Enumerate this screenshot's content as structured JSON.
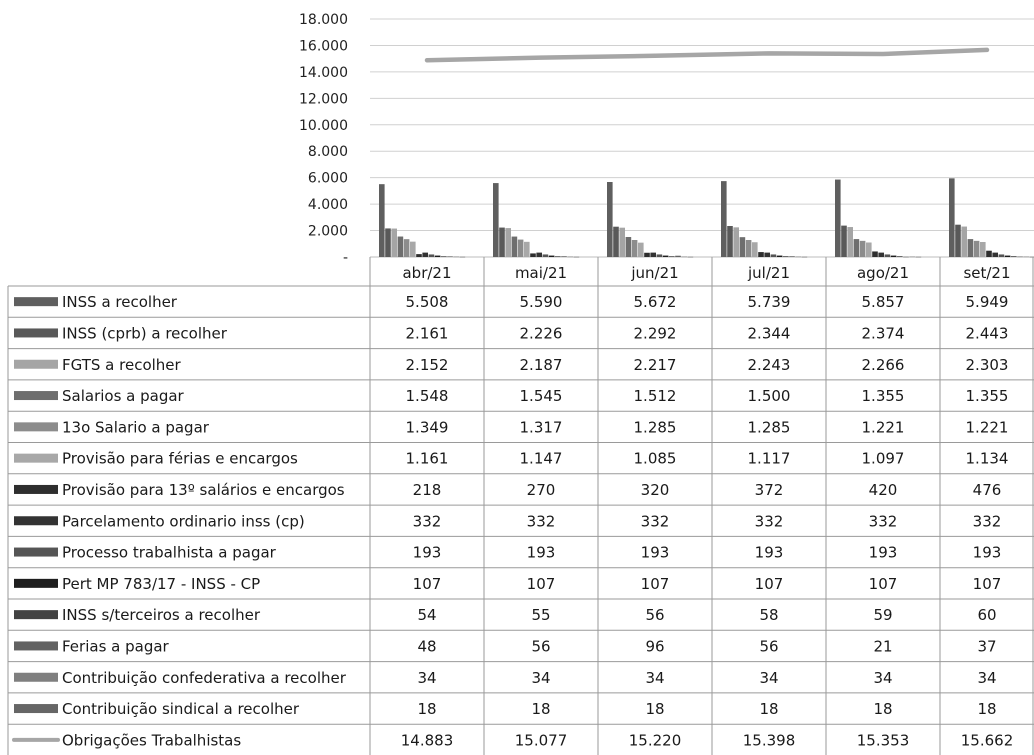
{
  "chart_data": {
    "type": "bar",
    "title": "",
    "xlabel": "",
    "ylabel": "",
    "ylim": [
      0,
      18000
    ],
    "yticks": [
      "-",
      "2.000",
      "4.000",
      "6.000",
      "8.000",
      "10.000",
      "12.000",
      "14.000",
      "16.000",
      "18.000"
    ],
    "categories": [
      "abr/21",
      "mai/21",
      "jun/21",
      "jul/21",
      "ago/21",
      "set/21"
    ],
    "series": [
      {
        "name": "INSS a recolher",
        "color": "#5f5f5f",
        "values": [
          5508,
          5590,
          5672,
          5739,
          5857,
          5949
        ],
        "labels": [
          "5.508",
          "5.590",
          "5.672",
          "5.739",
          "5.857",
          "5.949"
        ]
      },
      {
        "name": "INSS (cprb) a recolher",
        "color": "#595959",
        "values": [
          2161,
          2226,
          2292,
          2344,
          2374,
          2443
        ],
        "labels": [
          "2.161",
          "2.226",
          "2.292",
          "2.344",
          "2.374",
          "2.443"
        ]
      },
      {
        "name": "FGTS a recolher",
        "color": "#a5a5a5",
        "values": [
          2152,
          2187,
          2217,
          2243,
          2266,
          2303
        ],
        "labels": [
          "2.152",
          "2.187",
          "2.217",
          "2.243",
          "2.266",
          "2.303"
        ]
      },
      {
        "name": "Salarios a pagar",
        "color": "#6e6e6e",
        "values": [
          1548,
          1545,
          1512,
          1500,
          1355,
          1355
        ],
        "labels": [
          "1.548",
          "1.545",
          "1.512",
          "1.500",
          "1.355",
          "1.355"
        ]
      },
      {
        "name": "13o Salario a pagar",
        "color": "#8c8c8c",
        "values": [
          1349,
          1317,
          1285,
          1285,
          1221,
          1221
        ],
        "labels": [
          "1.349",
          "1.317",
          "1.285",
          "1.285",
          "1.221",
          "1.221"
        ]
      },
      {
        "name": "Provisão para férias e encargos",
        "color": "#a8a8a8",
        "values": [
          1161,
          1147,
          1085,
          1117,
          1097,
          1134
        ],
        "labels": [
          "1.161",
          "1.147",
          "1.085",
          "1.117",
          "1.097",
          "1.134"
        ]
      },
      {
        "name": "Provisão para 13º salários e encargos",
        "color": "#2e2e2e",
        "values": [
          218,
          270,
          320,
          372,
          420,
          476
        ],
        "labels": [
          "218",
          "270",
          "320",
          "372",
          "420",
          "476"
        ]
      },
      {
        "name": "Parcelamento ordinario inss (cp)",
        "color": "#333333",
        "values": [
          332,
          332,
          332,
          332,
          332,
          332
        ],
        "labels": [
          "332",
          "332",
          "332",
          "332",
          "332",
          "332"
        ]
      },
      {
        "name": "Processo trabalhista a pagar",
        "color": "#555555",
        "values": [
          193,
          193,
          193,
          193,
          193,
          193
        ],
        "labels": [
          "193",
          "193",
          "193",
          "193",
          "193",
          "193"
        ]
      },
      {
        "name": "Pert MP 783/17 - INSS - CP",
        "color": "#1e1e1e",
        "values": [
          107,
          107,
          107,
          107,
          107,
          107
        ],
        "labels": [
          "107",
          "107",
          "107",
          "107",
          "107",
          "107"
        ]
      },
      {
        "name": "INSS s/terceiros a recolher",
        "color": "#424242",
        "values": [
          54,
          55,
          56,
          58,
          59,
          60
        ],
        "labels": [
          "54",
          "55",
          "56",
          "58",
          "59",
          "60"
        ]
      },
      {
        "name": "Ferias a pagar",
        "color": "#626262",
        "values": [
          48,
          56,
          96,
          56,
          21,
          37
        ],
        "labels": [
          "48",
          "56",
          "96",
          "56",
          "21",
          "37"
        ]
      },
      {
        "name": "Contribuição confederativa a recolher",
        "color": "#7f7f7f",
        "values": [
          34,
          34,
          34,
          34,
          34,
          34
        ],
        "labels": [
          "34",
          "34",
          "34",
          "34",
          "34",
          "34"
        ]
      },
      {
        "name": "Contribuição sindical a recolher",
        "color": "#666666",
        "values": [
          18,
          18,
          18,
          18,
          18,
          18
        ],
        "labels": [
          "18",
          "18",
          "18",
          "18",
          "18",
          "18"
        ]
      },
      {
        "name": "Obrigações Trabalhistas",
        "type": "line",
        "color": "#a6a6a6",
        "values": [
          14883,
          15077,
          15220,
          15398,
          15353,
          15662
        ],
        "labels": [
          "14.883",
          "15.077",
          "15.220",
          "15.398",
          "15.353",
          "15.662"
        ]
      }
    ],
    "grid": true,
    "legend": "table-left"
  }
}
